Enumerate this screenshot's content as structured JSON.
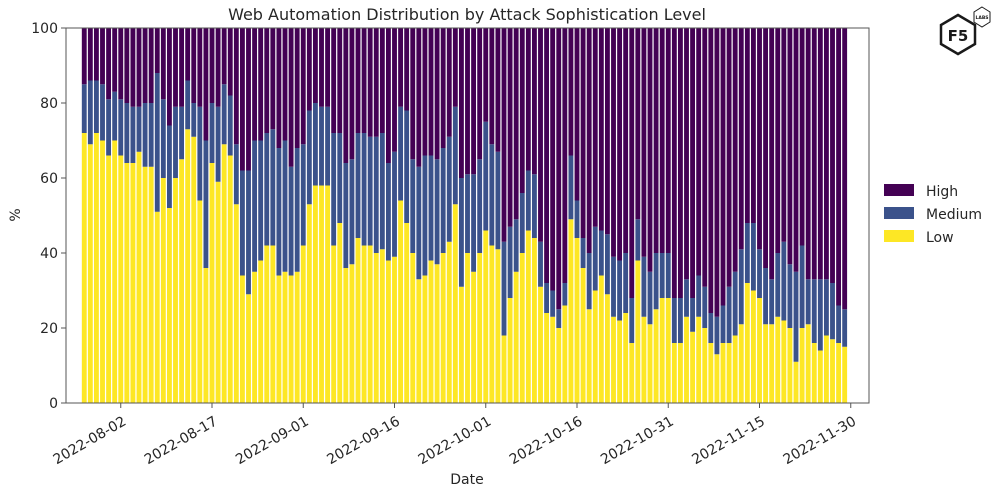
{
  "chart_data": {
    "type": "bar",
    "stacked": true,
    "title": "Web Automation Distribution by Attack Sophistication Level",
    "xlabel": "Date",
    "ylabel": "%",
    "ylim": [
      0,
      100
    ],
    "yticks": [
      0,
      20,
      40,
      60,
      80,
      100
    ],
    "xlim": [
      "2022-07-24",
      "2022-12-03"
    ],
    "xticks": [
      "2022-08-02",
      "2022-08-17",
      "2022-09-01",
      "2022-09-16",
      "2022-10-01",
      "2022-10-16",
      "2022-10-31",
      "2022-11-15",
      "2022-11-30"
    ],
    "start_date": "2022-07-27",
    "end_date": "2022-11-30",
    "legend_position": "right",
    "series": [
      {
        "name": "Low",
        "color": "#fde725",
        "values": [
          72,
          69,
          72,
          70,
          66,
          70,
          66,
          64,
          64,
          67,
          63,
          63,
          51,
          60,
          52,
          60,
          65,
          73,
          71,
          54,
          36,
          64,
          59,
          69,
          66,
          53,
          34,
          29,
          35,
          38,
          42,
          42,
          34,
          35,
          34,
          35,
          42,
          53,
          58,
          58,
          58,
          42,
          48,
          36,
          37,
          44,
          42,
          42,
          40,
          41,
          38,
          39,
          54,
          48,
          40,
          33,
          34,
          38,
          37,
          40,
          43,
          53,
          31,
          40,
          35,
          40,
          46,
          42,
          41,
          18,
          28,
          35,
          40,
          46,
          44,
          31,
          24,
          23,
          20,
          26,
          49,
          44,
          36,
          25,
          30,
          34,
          29,
          23,
          22,
          24,
          16,
          38,
          23,
          21,
          25,
          28,
          28,
          16,
          16,
          23,
          19,
          23,
          20,
          16,
          13,
          16,
          16,
          18,
          21,
          32,
          30,
          28,
          21,
          21,
          23,
          22,
          20,
          11,
          20,
          21,
          16,
          14,
          18,
          17,
          16,
          15
        ]
      },
      {
        "name": "Medium",
        "color": "#3b528b",
        "values": [
          13,
          17,
          14,
          15,
          15,
          13,
          15,
          16,
          15,
          12,
          17,
          17,
          37,
          21,
          22,
          19,
          14,
          13,
          9,
          25,
          34,
          16,
          20,
          16,
          16,
          16,
          28,
          33,
          35,
          32,
          30,
          31,
          34,
          35,
          29,
          33,
          27,
          25,
          22,
          21,
          21,
          30,
          24,
          28,
          28,
          28,
          30,
          29,
          31,
          31,
          26,
          28,
          25,
          30,
          25,
          30,
          32,
          28,
          28,
          28,
          28,
          26,
          29,
          21,
          26,
          25,
          29,
          27,
          26,
          25,
          19,
          14,
          16,
          16,
          17,
          12,
          8,
          7,
          5,
          6,
          17,
          10,
          8,
          15,
          17,
          12,
          16,
          16,
          16,
          16,
          12,
          11,
          16,
          14,
          15,
          12,
          12,
          12,
          12,
          10,
          9,
          11,
          11,
          8,
          10,
          10,
          15,
          17,
          20,
          16,
          18,
          13,
          15,
          12,
          17,
          21,
          17,
          24,
          22,
          12,
          17,
          19,
          15,
          15,
          10,
          10
        ]
      },
      {
        "name": "High",
        "color": "#440154",
        "values": [
          15,
          14,
          14,
          15,
          19,
          17,
          19,
          20,
          21,
          21,
          20,
          20,
          12,
          19,
          26,
          21,
          21,
          14,
          20,
          21,
          30,
          20,
          21,
          15,
          18,
          31,
          38,
          38,
          30,
          30,
          28,
          27,
          32,
          30,
          37,
          32,
          31,
          22,
          20,
          21,
          21,
          28,
          28,
          36,
          35,
          28,
          28,
          29,
          29,
          28,
          36,
          33,
          21,
          22,
          35,
          37,
          34,
          34,
          35,
          32,
          29,
          21,
          40,
          39,
          39,
          35,
          25,
          31,
          33,
          57,
          53,
          51,
          44,
          38,
          39,
          57,
          68,
          70,
          75,
          68,
          34,
          46,
          56,
          60,
          53,
          54,
          55,
          61,
          62,
          60,
          72,
          51,
          61,
          65,
          60,
          60,
          60,
          72,
          72,
          67,
          72,
          66,
          69,
          76,
          77,
          74,
          69,
          65,
          59,
          52,
          52,
          59,
          64,
          67,
          60,
          57,
          63,
          65,
          58,
          67,
          67,
          67,
          67,
          68,
          74,
          75
        ]
      }
    ]
  },
  "legend": {
    "high": "High",
    "medium": "Medium",
    "low": "Low"
  },
  "logo": {
    "text": "F5",
    "subtext": "LABS"
  }
}
